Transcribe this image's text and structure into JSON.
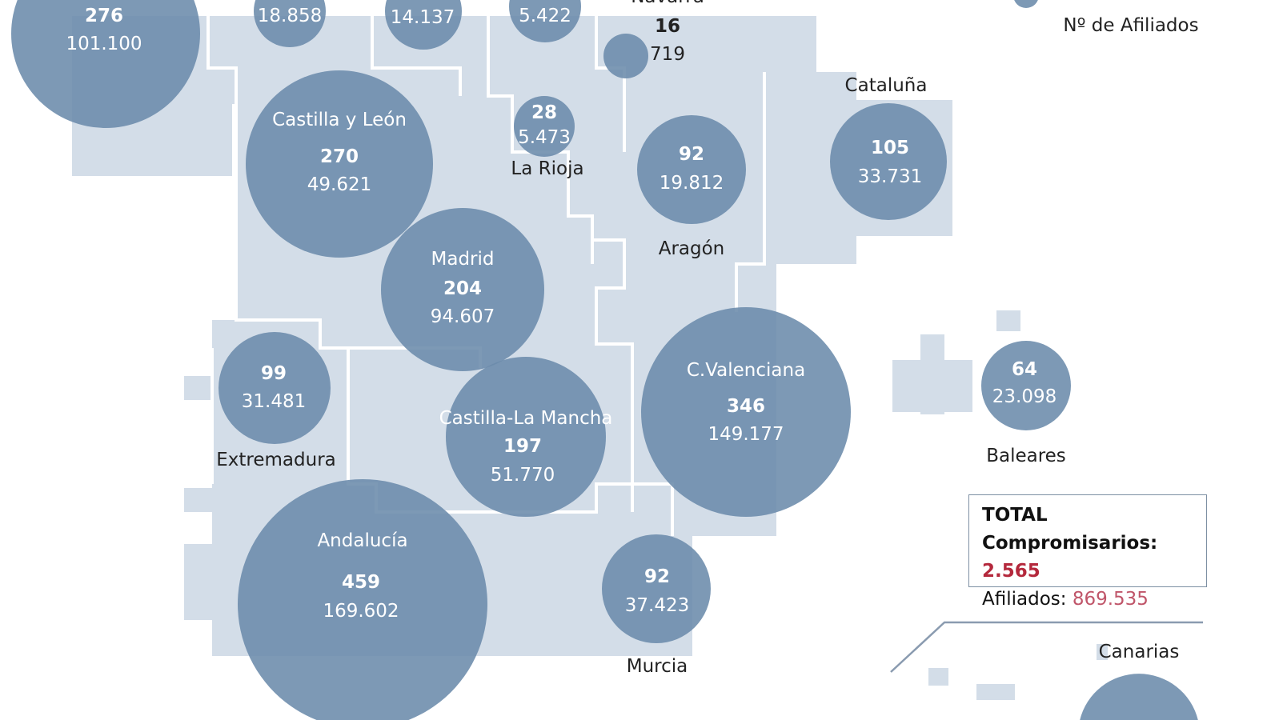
{
  "colors": {
    "bubble": "#6b8bab",
    "land": "#d3dde8",
    "border": "#ffffff",
    "accent": "#b4283c"
  },
  "legend": {
    "afiliados_label": "Nº de Afiliados"
  },
  "regions": [
    {
      "name": "",
      "compromisarios": "276",
      "afiliados": "101.100"
    },
    {
      "name": "",
      "compromisarios": "",
      "afiliados": "18.858"
    },
    {
      "name": "",
      "compromisarios": "",
      "afiliados": "14.137"
    },
    {
      "name": "",
      "compromisarios": "",
      "afiliados": "5.422"
    },
    {
      "name": "Navarra",
      "compromisarios": "16",
      "afiliados": "719"
    },
    {
      "name": "Castilla y León",
      "compromisarios": "270",
      "afiliados": "49.621"
    },
    {
      "name": "La Rioja",
      "compromisarios": "28",
      "afiliados": "5.473"
    },
    {
      "name": "Aragón",
      "compromisarios": "92",
      "afiliados": "19.812"
    },
    {
      "name": "Cataluña",
      "compromisarios": "105",
      "afiliados": "33.731"
    },
    {
      "name": "Madrid",
      "compromisarios": "204",
      "afiliados": "94.607"
    },
    {
      "name": "Extremadura",
      "compromisarios": "99",
      "afiliados": "31.481"
    },
    {
      "name": "Castilla-La Mancha",
      "compromisarios": "197",
      "afiliados": "51.770"
    },
    {
      "name": "C.Valenciana",
      "compromisarios": "346",
      "afiliados": "149.177"
    },
    {
      "name": "Baleares",
      "compromisarios": "64",
      "afiliados": "23.098"
    },
    {
      "name": "Andalucía",
      "compromisarios": "459",
      "afiliados": "169.602"
    },
    {
      "name": "Murcia",
      "compromisarios": "92",
      "afiliados": "37.423"
    },
    {
      "name": "Canarias",
      "compromisarios": "",
      "afiliados": ""
    }
  ],
  "total": {
    "title": "TOTAL",
    "compromisarios_label": "Compromisarios:",
    "compromisarios": "2.565",
    "afiliados_label": "Afiliados:",
    "afiliados": "869.535"
  }
}
